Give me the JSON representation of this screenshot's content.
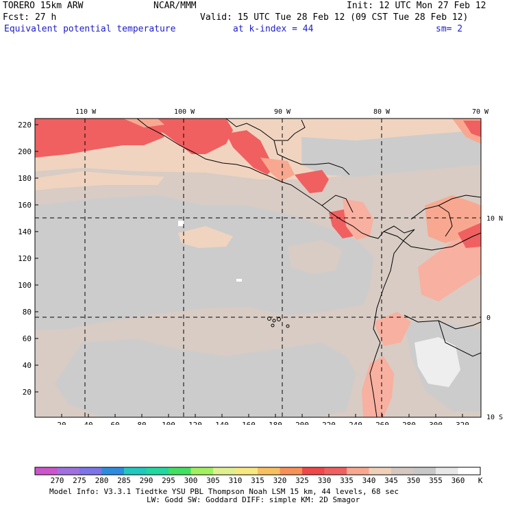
{
  "header": {
    "model": "TORERO  15km ARW",
    "center": "NCAR/MMM",
    "init": "Init: 12 UTC Mon 27 Feb 12",
    "fcst": "Fcst:   27 h",
    "valid": "Valid: 15 UTC Tue 28 Feb 12 (09 CST Tue 28 Feb 12)",
    "field": "Equivalent potential temperature",
    "level": "at k-index =  44",
    "smooth": "sm= 2"
  },
  "map": {
    "lon_labels": [
      "110 W",
      "100 W",
      "90 W",
      "80 W",
      "70 W"
    ],
    "lat_labels": [
      "10 N",
      "0",
      "10 S"
    ],
    "y_ticks": [
      "220",
      "200",
      "180",
      "160",
      "140",
      "120",
      "100",
      "80",
      "60",
      "40",
      "20"
    ],
    "x_ticks": [
      "20",
      "40",
      "60",
      "80",
      "100",
      "120",
      "140",
      "160",
      "180",
      "200",
      "220",
      "240",
      "260",
      "280",
      "300",
      "320"
    ]
  },
  "colorbar": {
    "unit": "K",
    "levels": [
      "270",
      "275",
      "280",
      "285",
      "290",
      "295",
      "300",
      "305",
      "310",
      "315",
      "320",
      "325",
      "330",
      "335",
      "340",
      "345",
      "350",
      "355",
      "360"
    ],
    "colors": [
      "#cc55cc",
      "#a070e0",
      "#7c74e8",
      "#2c8ce0",
      "#20c8c0",
      "#20d8a0",
      "#40e060",
      "#a0f060",
      "#e0f090",
      "#f8e880",
      "#f8c060",
      "#f89058",
      "#f04848",
      "#f06060",
      "#f8a890",
      "#f0d0b8",
      "#d4c8c0",
      "#c8c8c8",
      "#e8e8e8",
      "#ffffff"
    ]
  },
  "footer": {
    "line1": "Model Info: V3.3.1    Tiedtke YSU PBL  Thompson    Noah LSM  15 km,   44 levels,   68 sec",
    "line2": "LW: Godd SW: Goddard DIFF: simple KM: 2D Smagor"
  }
}
